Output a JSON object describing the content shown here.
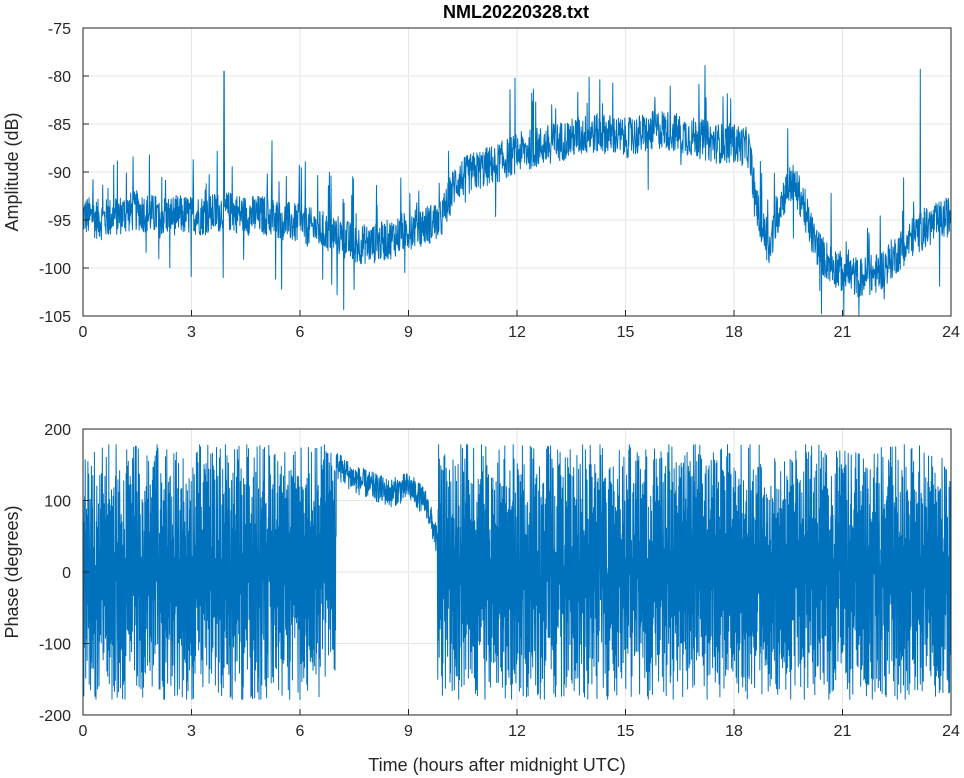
{
  "figure": {
    "title": "NML20220328.txt"
  },
  "chart_data": [
    {
      "type": "line",
      "title": "NML20220328.txt",
      "xlabel": "",
      "ylabel": "Amplitude (dB)",
      "xlim": [
        0,
        24
      ],
      "ylim": [
        -105,
        -75
      ],
      "xticks": [
        0,
        3,
        6,
        9,
        12,
        15,
        18,
        21,
        24
      ],
      "yticks": [
        -75,
        -80,
        -85,
        -90,
        -95,
        -100,
        -105
      ],
      "grid": true,
      "color": "#0072BD",
      "series": [
        {
          "x": [
            0,
            0.5,
            1,
            1.5,
            2,
            2.5,
            3,
            3.5,
            3.9,
            4.5,
            5,
            5.5,
            6,
            6.5,
            7,
            7.5,
            8,
            8.5,
            9,
            9.5,
            9.9,
            10.3,
            10.8,
            11.5,
            12,
            12.5,
            13,
            13.5,
            14,
            14.5,
            15,
            15.5,
            16,
            16.5,
            17,
            17.5,
            18,
            18.4,
            18.7,
            19,
            19.3,
            19.6,
            19.9,
            20.2,
            20.5,
            21,
            21.5,
            22,
            22.5,
            23,
            23.5,
            24
          ],
          "y": [
            -94.5,
            -95,
            -94.5,
            -94,
            -94.5,
            -94.5,
            -94.5,
            -94.5,
            -94,
            -94.5,
            -94.5,
            -95,
            -95.5,
            -96,
            -96.5,
            -97.5,
            -97.5,
            -97,
            -96,
            -95.5,
            -95,
            -91,
            -90,
            -89,
            -88,
            -87.5,
            -87,
            -86.5,
            -86,
            -86,
            -86.5,
            -86,
            -85.5,
            -86,
            -86.5,
            -87,
            -87,
            -87.5,
            -95,
            -98,
            -93,
            -91,
            -93,
            -97,
            -99,
            -100.5,
            -101,
            -100.5,
            -98.5,
            -96.5,
            -95.5,
            -94.5
          ]
        }
      ]
    },
    {
      "type": "line",
      "title": "",
      "xlabel": "Time (hours after midnight UTC)",
      "ylabel": "Phase (degrees)",
      "xlim": [
        0,
        24
      ],
      "ylim": [
        -200,
        200
      ],
      "xticks": [
        0,
        3,
        6,
        9,
        12,
        15,
        18,
        21,
        24
      ],
      "yticks": [
        200,
        100,
        0,
        -100,
        -200
      ],
      "grid": true,
      "color": "#0072BD",
      "series": [
        {
          "x": [
            7.0,
            7.5,
            8.0,
            8.5,
            9.0,
            9.5,
            9.8
          ],
          "y": [
            150,
            130,
            120,
            110,
            120,
            95,
            40
          ]
        }
      ]
    }
  ]
}
